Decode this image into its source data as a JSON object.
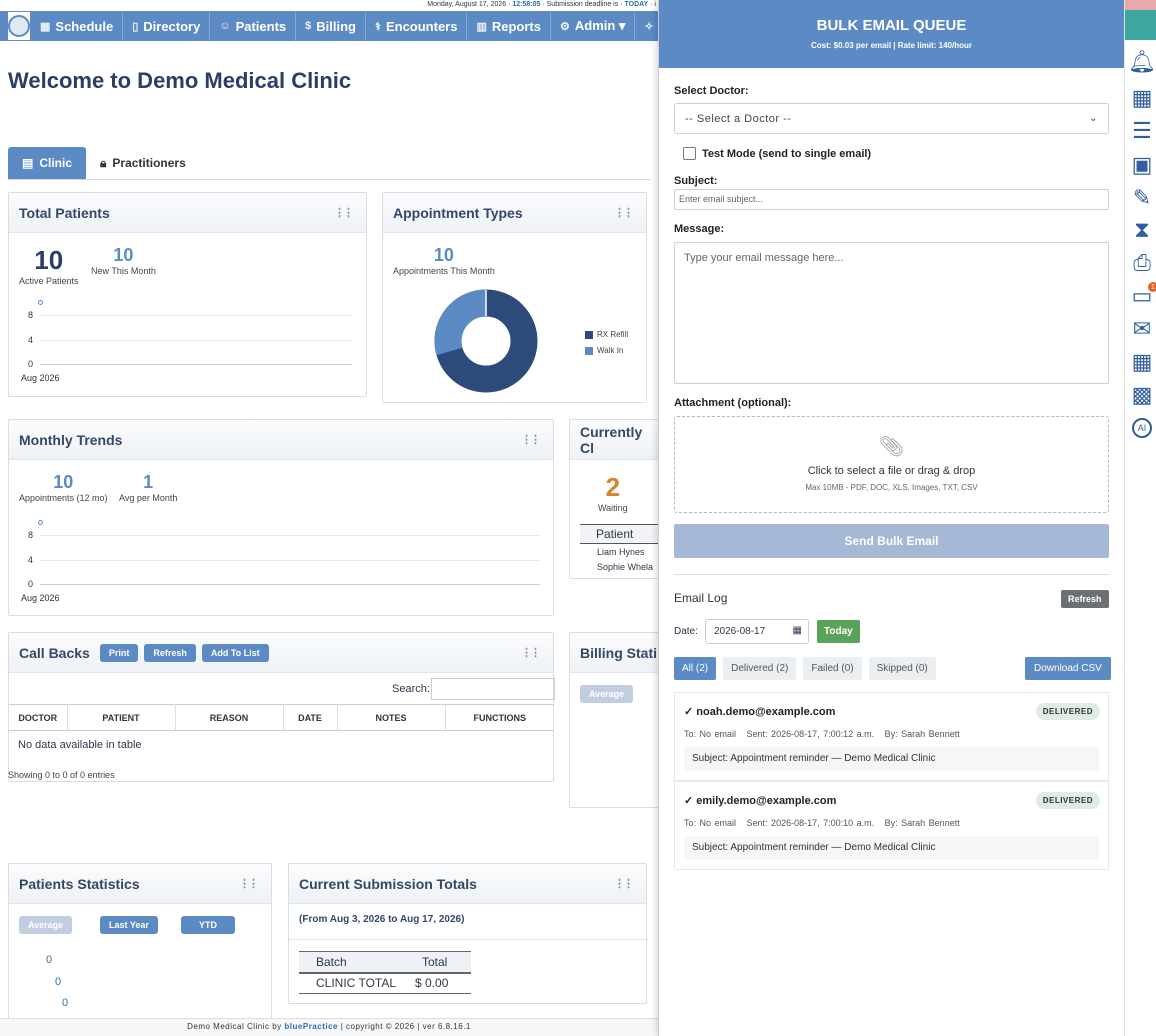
{
  "topbar": {
    "date": "Monday, August 17, 2026 ·",
    "time": "12:58:05",
    "deadline_text": "· Submission deadline is ·",
    "today": "TODAY",
    "tail": "· i"
  },
  "nav": {
    "items": [
      {
        "label": "Schedule",
        "icon": "calendar-icon"
      },
      {
        "label": "Directory",
        "icon": "book-icon"
      },
      {
        "label": "Patients",
        "icon": "users-icon"
      },
      {
        "label": "Billing",
        "icon": "dollar-icon"
      },
      {
        "label": "Encounters",
        "icon": "stethoscope-icon"
      },
      {
        "label": "Reports",
        "icon": "chart-icon"
      },
      {
        "label": "Admin ▾",
        "icon": "gear-icon"
      },
      {
        "label": "AI",
        "icon": "sparkle-icon"
      }
    ]
  },
  "page": {
    "title": "Welcome to Demo Medical Clinic"
  },
  "tabs": {
    "clinic": "Clinic",
    "practitioners": "Practitioners"
  },
  "total_patients": {
    "title": "Total Patients",
    "active_value": "10",
    "active_label": "Active Patients",
    "new_value": "10",
    "new_label": "New This Month",
    "ticks": [
      "8",
      "4",
      "0"
    ],
    "x_label": "Aug 2026"
  },
  "appointment_types": {
    "title": "Appointment Types",
    "value": "10",
    "label": "Appointments This Month",
    "legend": [
      "RX Refill",
      "Walk In"
    ],
    "colors": [
      "#2c4a7a",
      "#5b8ac4"
    ]
  },
  "monthly_trends": {
    "title": "Monthly Trends",
    "appt_value": "10",
    "appt_label": "Appointments (12 mo)",
    "avg_value": "1",
    "avg_label": "Avg per Month",
    "ticks": [
      "8",
      "4",
      "0"
    ],
    "x_label": "Aug 2026"
  },
  "currently": {
    "title": "Currently Cl",
    "waiting_value": "2",
    "waiting_label": "Waiting",
    "col": "Patient",
    "rows": [
      "Liam Hynes",
      "Sophie Whela"
    ]
  },
  "callbacks": {
    "title": "Call Backs",
    "print": "Print",
    "refresh": "Refresh",
    "add": "Add To List",
    "search_label": "Search:",
    "columns": [
      "DOCTOR",
      "PATIENT",
      "REASON",
      "DATE",
      "NOTES",
      "FUNCTIONS"
    ],
    "empty": "No data available in table",
    "showing": "Showing 0 to 0 of 0 entries"
  },
  "billing": {
    "title": "Billing Stati",
    "average": "Average"
  },
  "patients_stats": {
    "title": "Patients Statistics",
    "average": "Average",
    "last_year": "Last Year",
    "ytd": "YTD",
    "values": [
      "0",
      "0",
      "0"
    ]
  },
  "submission": {
    "title": "Current Submission Totals",
    "range": "(From Aug 3, 2026 to Aug 17, 2026)",
    "col_batch": "Batch",
    "col_total": "Total",
    "row_label": "CLINIC TOTAL",
    "row_total": "$ 0.00"
  },
  "footer": {
    "clinic": "Demo Medical Clinic by ",
    "brand": "bluePractice",
    "rest": "  |  copyright © 2026  |  ver 6.8.16.1"
  },
  "panel": {
    "title": "BULK EMAIL QUEUE",
    "subtitle": "Cost: $0.03 per email | Rate limit: 140/hour",
    "doctor_label": "Select Doctor:",
    "doctor_value": "-- Select a Doctor --",
    "test_mode": "Test Mode (send to single email)",
    "subject_label": "Subject:",
    "subject_placeholder": "Enter email subject...",
    "message_label": "Message:",
    "message_placeholder": "Type your email message here...",
    "attachment_label": "Attachment (optional):",
    "drop_text": "Click to select a file or drag & drop",
    "drop_hint": "Max 10MB - PDF, DOC, XLS, Images, TXT, CSV",
    "send": "Send Bulk Email",
    "log_title": "Email Log",
    "log_refresh": "Refresh",
    "date_label": "Date:",
    "date_value": "2026-08-17",
    "today": "Today",
    "filters": [
      "All (2)",
      "Delivered (2)",
      "Failed (0)",
      "Skipped (0)"
    ],
    "download": "Download CSV",
    "entries": [
      {
        "email": "✓ noah.demo@example.com",
        "status": "DELIVERED",
        "to": "To: No email",
        "sent": "Sent: 2026-08-17, 7:00:12 a.m.",
        "by": "By: Sarah Bennett",
        "subject": "Subject: Appointment reminder — Demo Medical Clinic"
      },
      {
        "email": "✓ emily.demo@example.com",
        "status": "DELIVERED",
        "to": "To: No email",
        "sent": "Sent: 2026-08-17, 7:00:10 a.m.",
        "by": "By: Sarah Bennett",
        "subject": "Subject: Appointment reminder — Demo Medical Clinic"
      }
    ]
  },
  "rail": {
    "icons": [
      "bell-icon",
      "calendar-clock-icon",
      "list-icon",
      "clipboard-icon",
      "signature-icon",
      "hourglass-icon",
      "fax-icon",
      "chat-icon",
      "mail-icon",
      "grid-icon",
      "qr-icon",
      "ai-icon"
    ],
    "chat_badge": "1"
  }
}
